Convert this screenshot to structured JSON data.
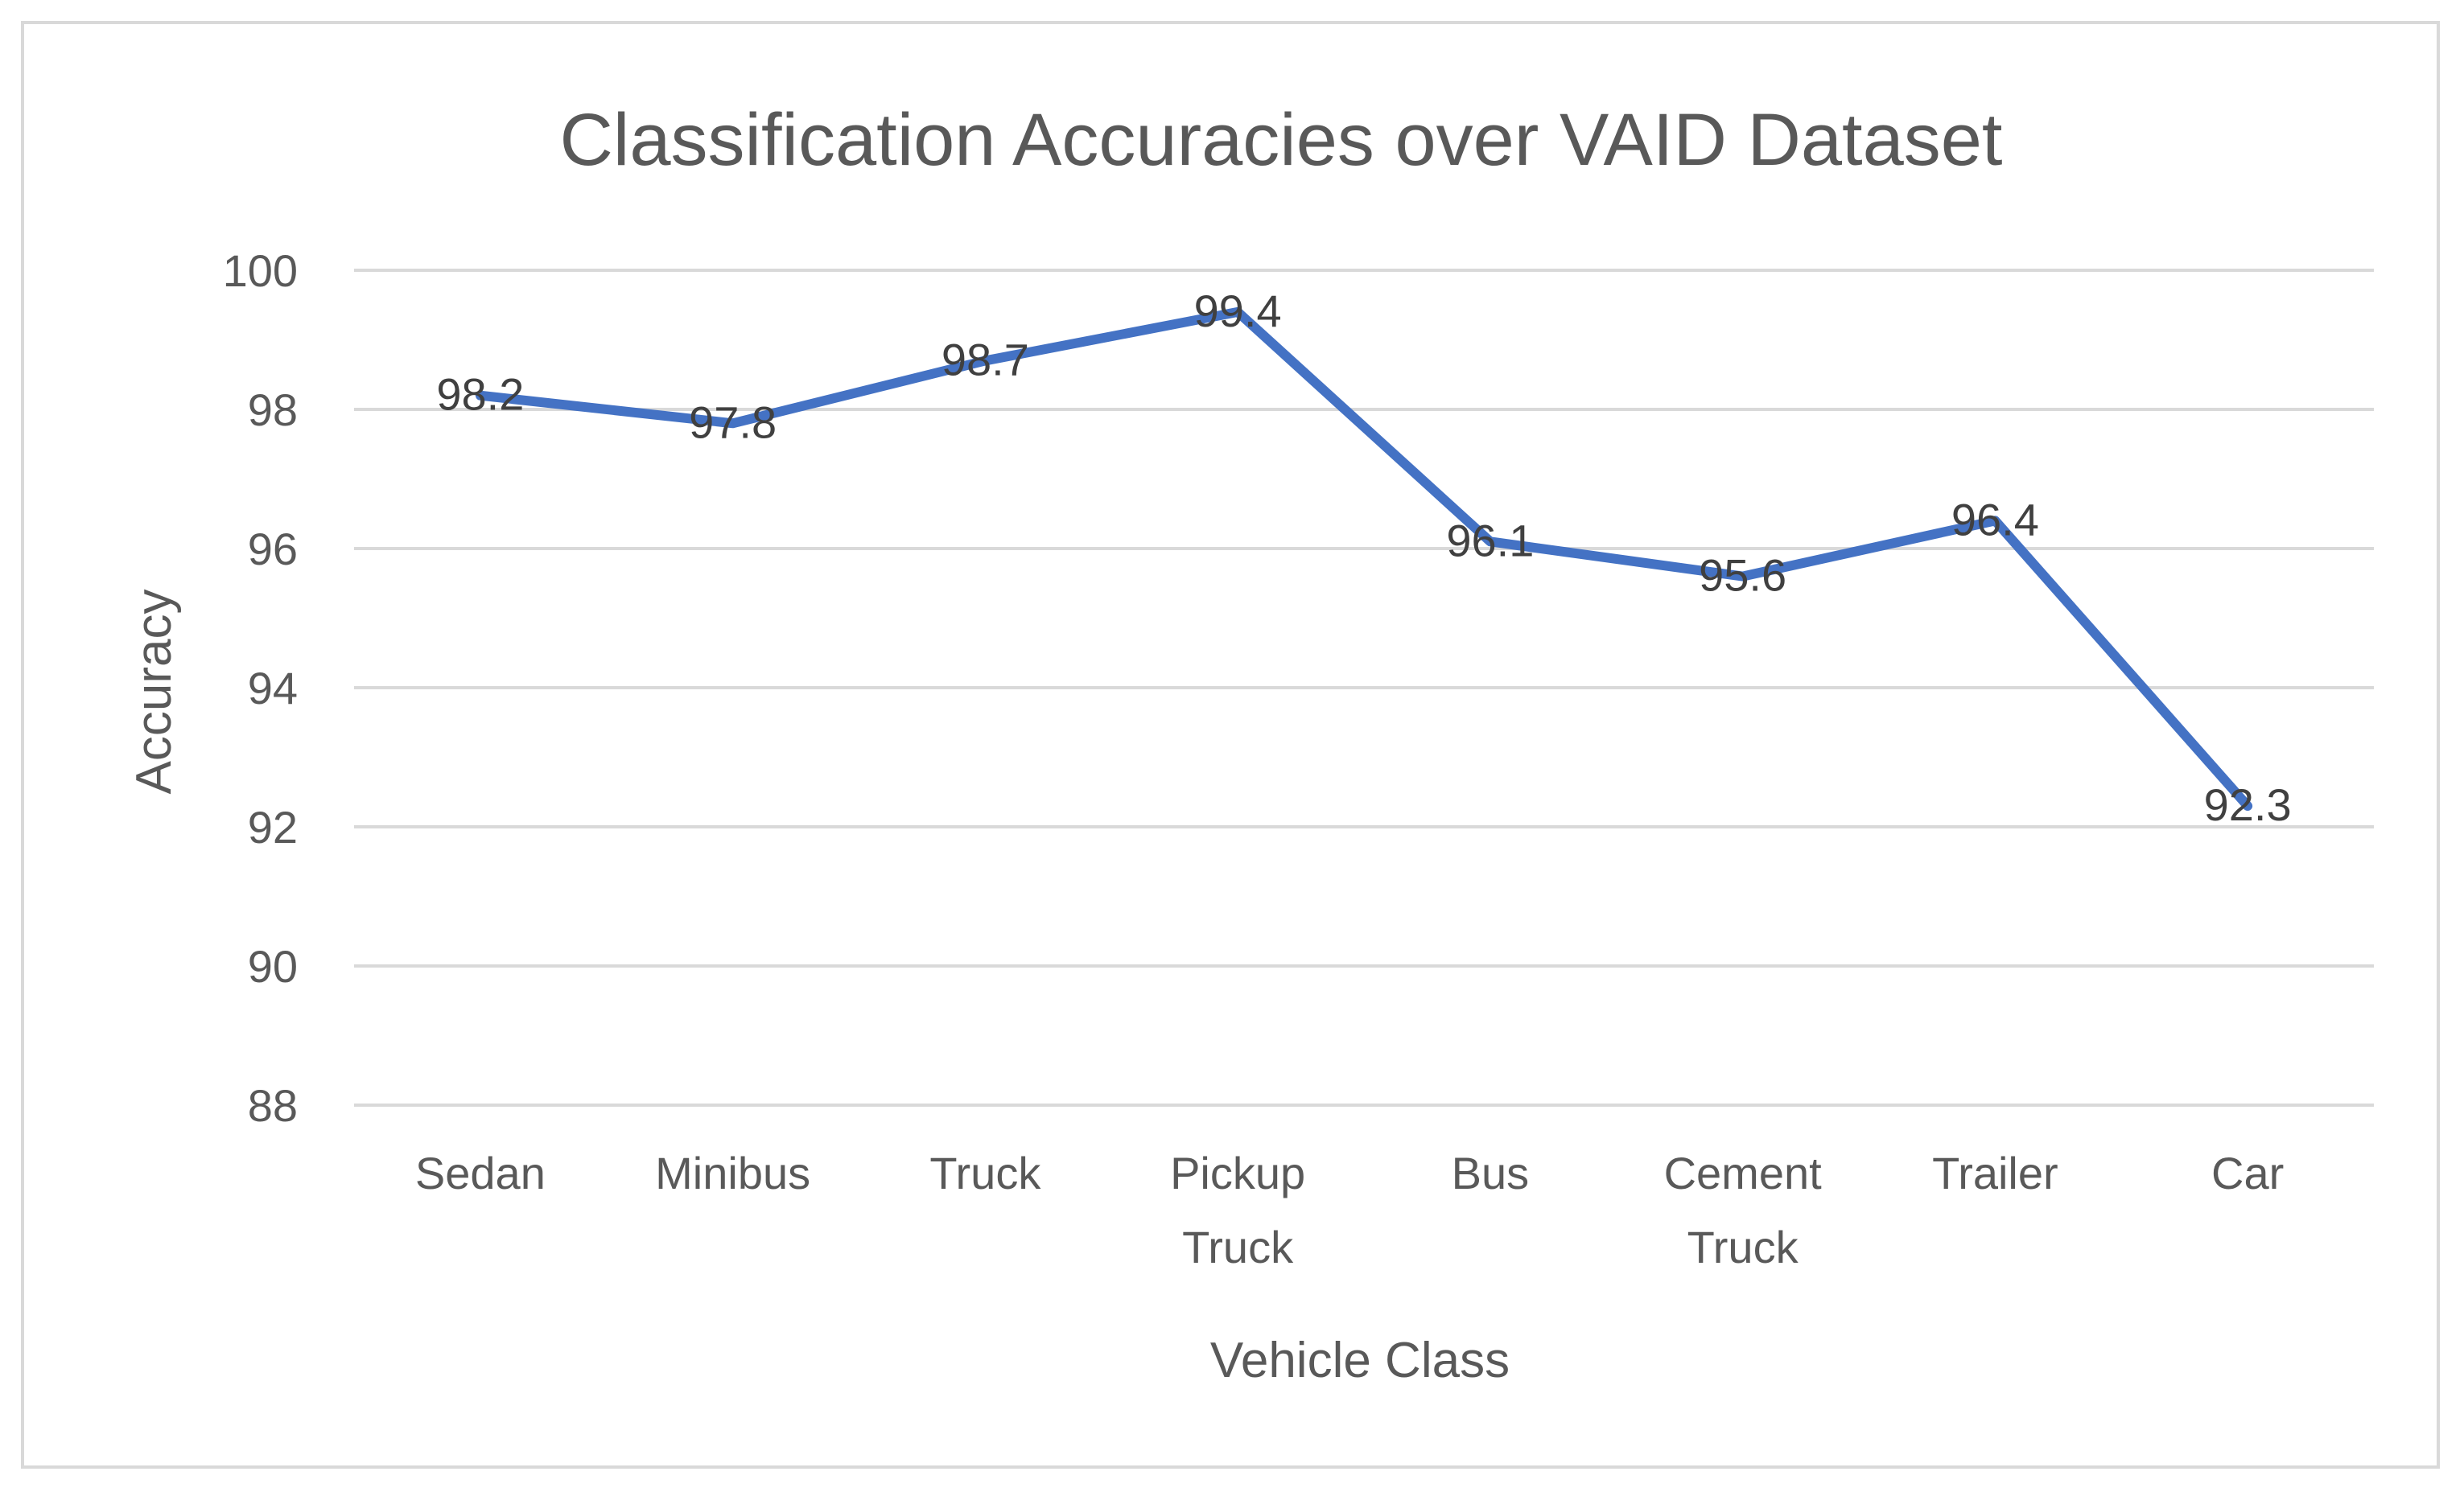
{
  "chart_data": {
    "type": "line",
    "title": "Classification Accuracies over VAID Dataset",
    "xlabel": "Vehicle Class",
    "ylabel": "Accuracy",
    "categories": [
      [
        "Sedan"
      ],
      [
        "Minibus"
      ],
      [
        "Truck"
      ],
      [
        "Pickup",
        "Truck"
      ],
      [
        "Bus"
      ],
      [
        "Cement",
        "Truck"
      ],
      [
        "Trailer"
      ],
      [
        "Car"
      ]
    ],
    "series": [
      {
        "values": [
          98.2,
          97.8,
          98.7,
          99.4,
          96.1,
          95.6,
          96.4,
          92.3
        ]
      }
    ],
    "data_labels": [
      "98.2",
      "97.8",
      "98.7",
      "99.4",
      "96.1",
      "95.6",
      "96.4",
      "92.3"
    ],
    "ylim": [
      88,
      100
    ],
    "yticks": [
      88,
      90,
      92,
      94,
      96,
      98,
      100
    ],
    "grid": true,
    "legend": "none",
    "colors": {
      "series": "#4472c4",
      "grid": "#d9d9d9",
      "text": "#595959"
    }
  }
}
